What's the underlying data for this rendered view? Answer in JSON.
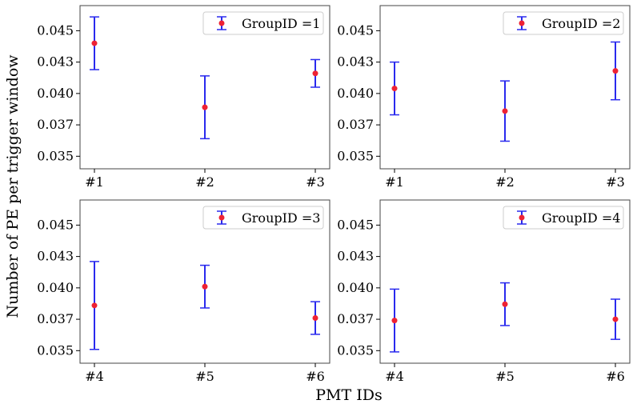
{
  "chart_data": {
    "type": "scatter",
    "ylabel": "Number of PE per trigger window",
    "xlabel": "PMT IDs",
    "ylim": [
      0.034,
      0.047
    ],
    "yticks": [
      0.035,
      0.0375,
      0.04,
      0.0425,
      0.045
    ],
    "ytick_labels": [
      "0.035",
      "0.037",
      "0.040",
      "0.043",
      "0.045"
    ],
    "colors": {
      "errorbar": "#2a2aee",
      "marker": "#ee2233",
      "frame": "#444444"
    },
    "panels": [
      {
        "legend": "GroupID =1",
        "categories": [
          "#1",
          "#2",
          "#3"
        ],
        "values": [
          0.044,
          0.0389,
          0.0416
        ],
        "errors": [
          0.0021,
          0.0025,
          0.0011
        ]
      },
      {
        "legend": "GroupID =2",
        "categories": [
          "#1",
          "#2",
          "#3"
        ],
        "values": [
          0.0404,
          0.0386,
          0.0418
        ],
        "errors": [
          0.0021,
          0.0024,
          0.0023
        ]
      },
      {
        "legend": "GroupID =3",
        "categories": [
          "#4",
          "#5",
          "#6"
        ],
        "values": [
          0.0386,
          0.0401,
          0.0376
        ],
        "errors": [
          0.0035,
          0.0017,
          0.0013
        ]
      },
      {
        "legend": "GroupID =4",
        "categories": [
          "#4",
          "#5",
          "#6"
        ],
        "values": [
          0.0374,
          0.0387,
          0.0375
        ],
        "errors": [
          0.0025,
          0.0017,
          0.0016
        ]
      }
    ]
  }
}
